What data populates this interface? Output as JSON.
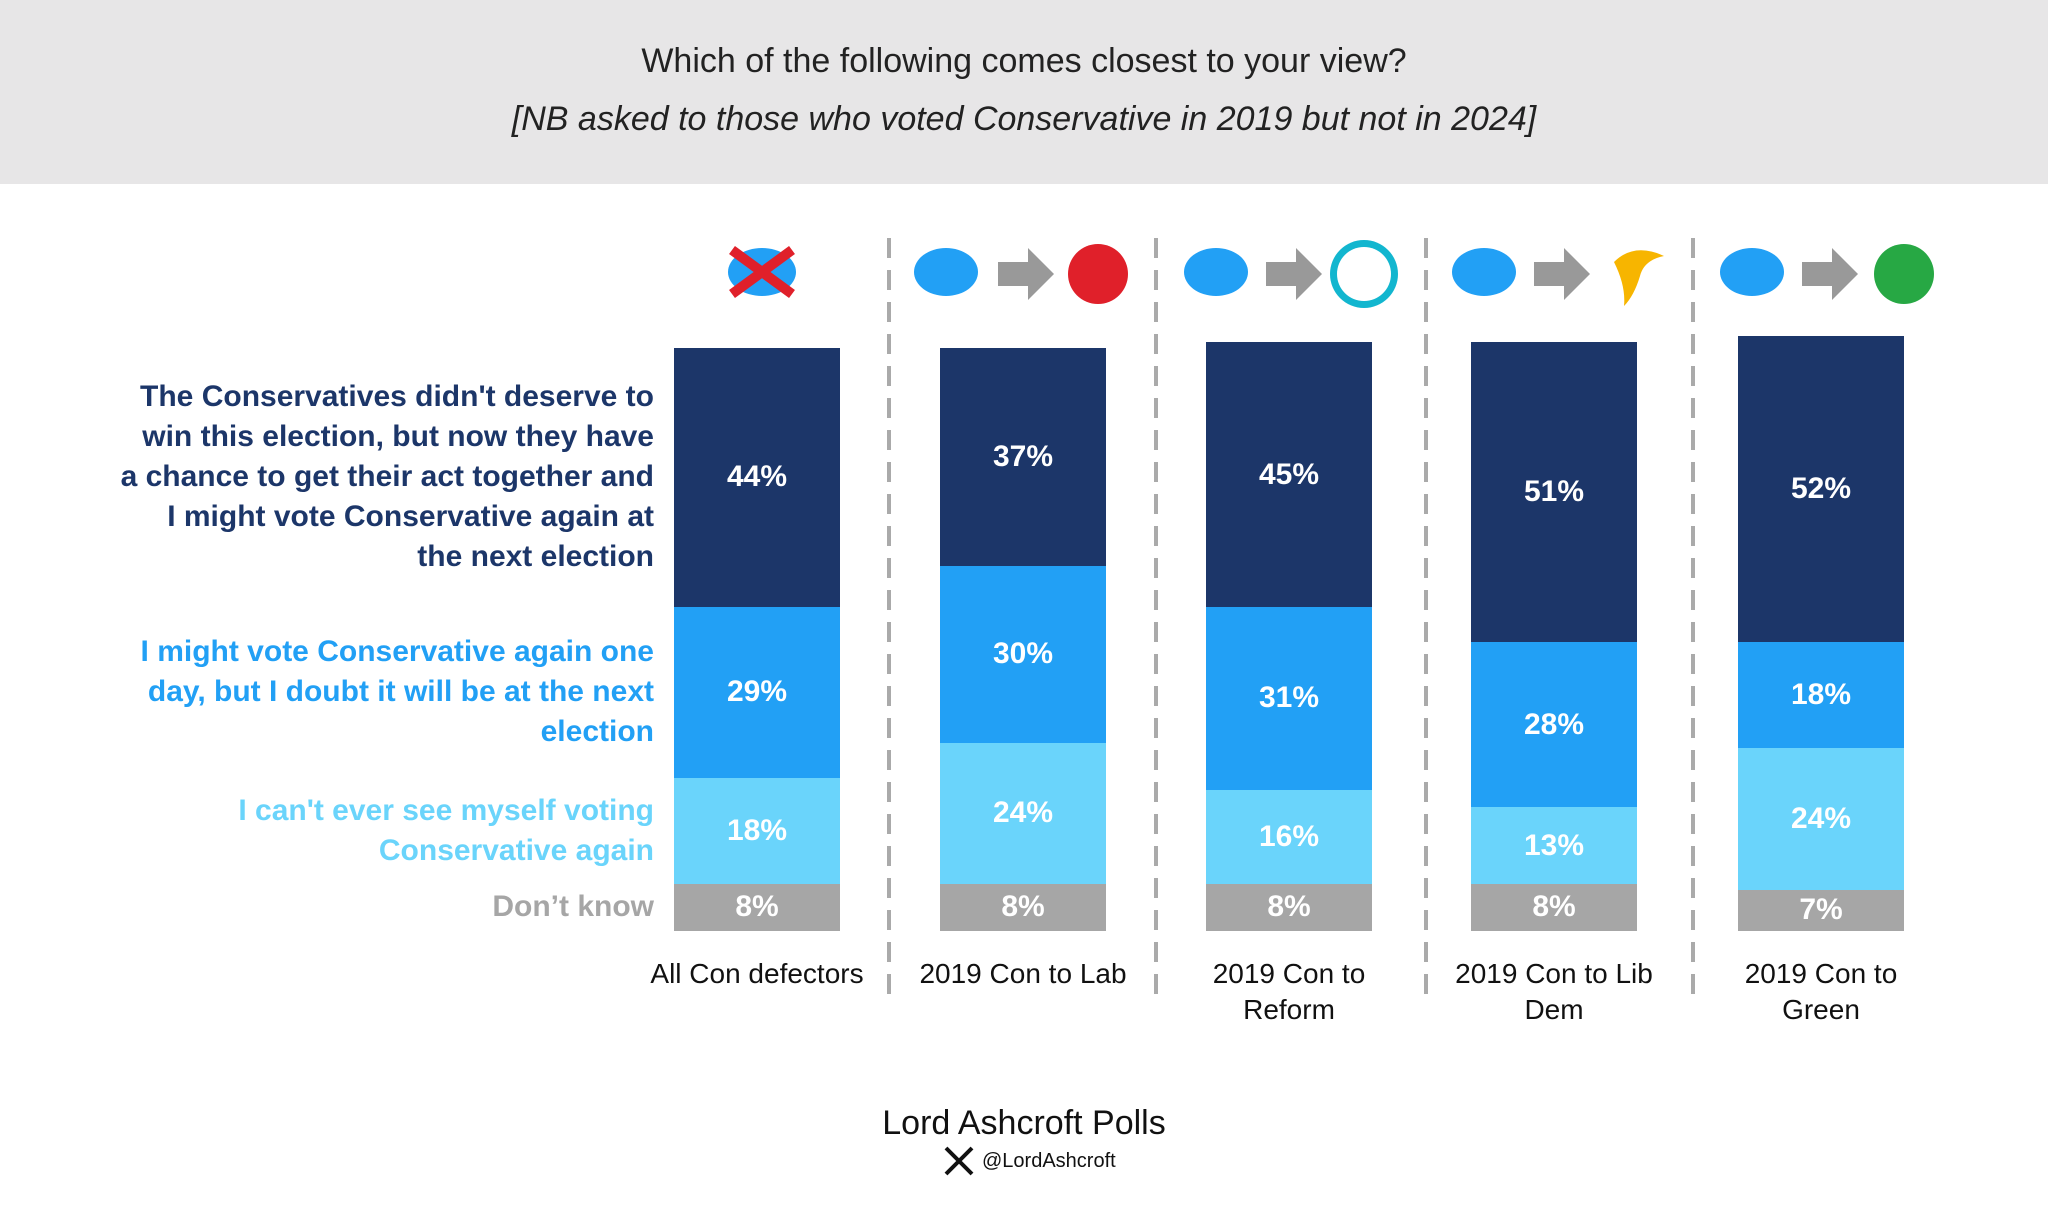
{
  "chart_data": {
    "type": "stacked_bar",
    "title": "Which of the following comes closest to your view?",
    "subtitle": "[NB asked to those who voted Conservative in 2019 but not in 2024]",
    "categories": [
      "All Con defectors",
      "2019 Con to Lab",
      "2019 Con to Reform",
      "2019 Con to Lib Dem",
      "2019 Con to Green"
    ],
    "ylim": [
      0,
      100
    ],
    "series": [
      {
        "name": "The Conservatives didn't deserve to win this election, but now they have a chance to get their act together and I might vote Conservative again at the next election",
        "color": "#1c3669",
        "values": [
          44,
          37,
          45,
          51,
          52
        ],
        "value_labels": [
          "44%",
          "37%",
          "45%",
          "51%",
          "52%"
        ]
      },
      {
        "name": "I might vote Conservative again one day, but I doubt it will be at the next election",
        "color": "#22a0f5",
        "values": [
          29,
          30,
          31,
          28,
          18
        ],
        "value_labels": [
          "29%",
          "30%",
          "31%",
          "28%",
          "18%"
        ]
      },
      {
        "name": "I can't ever see myself voting Conservative again",
        "color": "#6ad4fb",
        "values": [
          18,
          24,
          16,
          13,
          24
        ],
        "value_labels": [
          "18%",
          "24%",
          "16%",
          "13%",
          "24%"
        ]
      },
      {
        "name": "Don’t know",
        "color": "#a6a6a6",
        "values": [
          8,
          8,
          8,
          8,
          7
        ],
        "value_labels": [
          "8%",
          "8%",
          "8%",
          "8%",
          "7%"
        ]
      }
    ],
    "source": "Lord Ashcroft Polls",
    "handle": "@LordAshcroft"
  }
}
